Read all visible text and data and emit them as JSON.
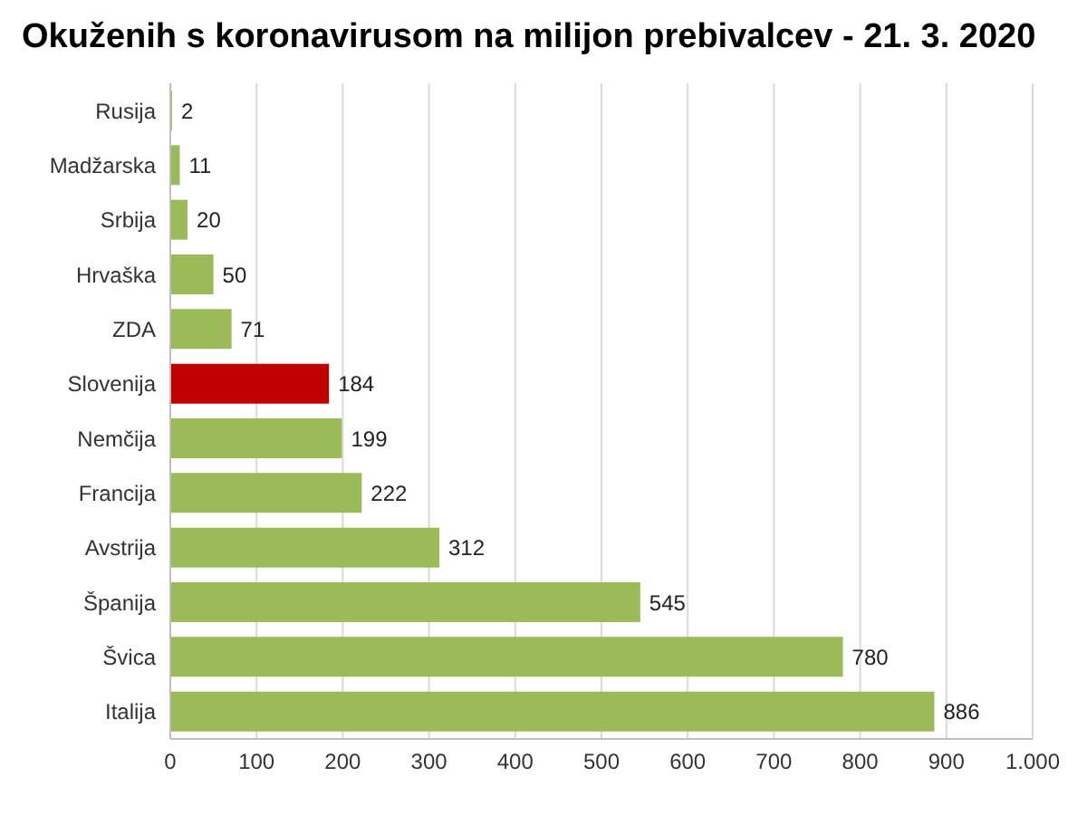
{
  "chart_data": {
    "type": "bar",
    "orientation": "horizontal",
    "title": "Okuženih s koronavirusom na milijon prebivalcev - 21. 3. 2020",
    "categories": [
      "Rusija",
      "Madžarska",
      "Srbija",
      "Hrvaška",
      "ZDA",
      "Slovenija",
      "Nemčija",
      "Francija",
      "Avstrija",
      "Španija",
      "Švica",
      "Italija"
    ],
    "values": [
      2,
      11,
      20,
      50,
      71,
      184,
      199,
      222,
      312,
      545,
      780,
      886
    ],
    "colors": [
      "#9bbb59",
      "#9bbb59",
      "#9bbb59",
      "#9bbb59",
      "#9bbb59",
      "#c00000",
      "#9bbb59",
      "#9bbb59",
      "#9bbb59",
      "#9bbb59",
      "#9bbb59",
      "#9bbb59"
    ],
    "xlim": [
      0,
      1000
    ],
    "xticks": [
      0,
      100,
      200,
      300,
      400,
      500,
      600,
      700,
      800,
      900,
      {
        "value": 1000,
        "label": "1.000"
      }
    ],
    "grid": "x",
    "data_labels": true,
    "legend": false
  }
}
